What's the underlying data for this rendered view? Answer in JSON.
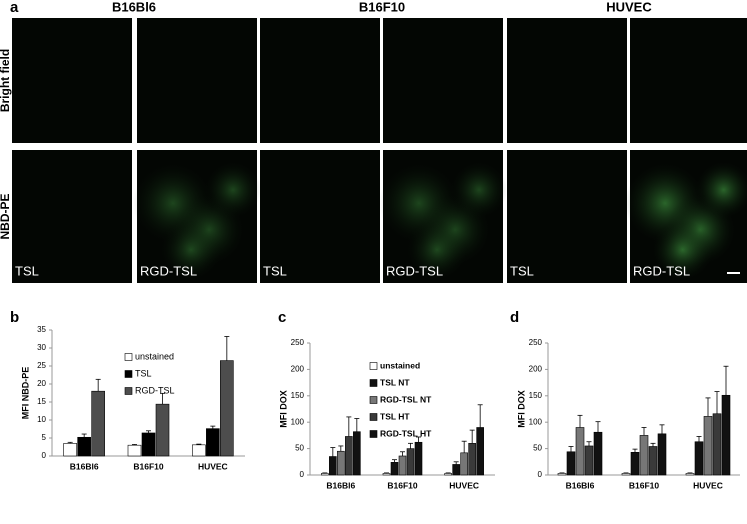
{
  "figure_a": {
    "label": "a",
    "columns": [
      "B16Bl6",
      "B16F10",
      "HUVEC"
    ],
    "rows": [
      "Bright field",
      "NBD-PE"
    ],
    "panel_labels": [
      "TSL",
      "RGD-TSL",
      "TSL",
      "RGD-TSL",
      "TSL",
      "RGD-TSL"
    ]
  },
  "chart_data": [
    {
      "type": "bar",
      "label": "b",
      "y_label": "MFI NBD-PE",
      "categories": [
        "B16Bl6",
        "B16F10",
        "HUVEC"
      ],
      "ylim": [
        0,
        35
      ],
      "yticks": [
        0,
        5,
        10,
        15,
        20,
        25,
        30,
        35
      ],
      "legend": true,
      "series": [
        {
          "name": "unstained",
          "color": "#ffffff",
          "values": [
            3.5,
            3.0,
            3.1
          ],
          "errors": [
            0.3,
            0.2,
            0.2
          ]
        },
        {
          "name": "TSL",
          "color": "#000000",
          "values": [
            5.2,
            6.4,
            7.6
          ],
          "errors": [
            0.9,
            0.6,
            0.7
          ]
        },
        {
          "name": "RGD-TSL",
          "color": "#4d4d4d",
          "values": [
            18,
            14.4,
            26.5
          ],
          "errors": [
            3.3,
            3.0,
            6.7
          ]
        }
      ]
    },
    {
      "type": "bar",
      "label": "c",
      "y_label": "MFI DOX",
      "categories": [
        "B16Bl6",
        "B16F10",
        "HUVEC"
      ],
      "ylim": [
        0,
        250
      ],
      "yticks": [
        0,
        50,
        100,
        150,
        200,
        250
      ],
      "legend": true,
      "series": [
        {
          "name": "unstained",
          "color": "#ffffff",
          "values": [
            3,
            3,
            3
          ],
          "errors": [
            1,
            1,
            1
          ]
        },
        {
          "name": "TSL NT",
          "color": "#111111",
          "values": [
            35,
            24,
            20
          ],
          "errors": [
            17,
            5,
            5
          ]
        },
        {
          "name": "RGD-TSL NT",
          "color": "#777777",
          "values": [
            45,
            36,
            42
          ],
          "errors": [
            10,
            8,
            22
          ]
        },
        {
          "name": "TSL HT",
          "color": "#3a3a3a",
          "values": [
            73,
            50,
            60
          ],
          "errors": [
            37,
            10,
            25
          ]
        },
        {
          "name": "RGD-TSL HT",
          "color": "#111111",
          "values": [
            82,
            62,
            90
          ],
          "errors": [
            25,
            10,
            43
          ]
        }
      ]
    },
    {
      "type": "bar",
      "label": "d",
      "y_label": "MFI DOX",
      "categories": [
        "B16Bl6",
        "B16F10",
        "HUVEC"
      ],
      "ylim": [
        0,
        250
      ],
      "yticks": [
        0,
        50,
        100,
        150,
        200,
        250
      ],
      "legend": false,
      "series": [
        {
          "color": "#ffffff",
          "values": [
            3,
            3,
            3
          ],
          "errors": [
            1,
            1,
            1
          ]
        },
        {
          "color": "#111111",
          "values": [
            44,
            43,
            63
          ],
          "errors": [
            10,
            6,
            10
          ]
        },
        {
          "color": "#777777",
          "values": [
            90,
            75,
            111
          ],
          "errors": [
            23,
            15,
            35
          ]
        },
        {
          "color": "#3a3a3a",
          "values": [
            55,
            54,
            116
          ],
          "errors": [
            8,
            6,
            42
          ]
        },
        {
          "color": "#111111",
          "values": [
            81,
            78,
            151
          ],
          "errors": [
            20,
            17,
            55
          ]
        }
      ]
    }
  ]
}
